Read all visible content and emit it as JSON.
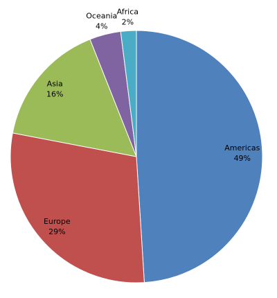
{
  "chart_data": {
    "type": "pie",
    "categories": [
      "Americas",
      "Europe",
      "Asia",
      "Oceania",
      "Africa"
    ],
    "values": [
      49,
      29,
      16,
      4,
      2
    ],
    "value_labels": [
      "49%",
      "29%",
      "16%",
      "4%",
      "2%"
    ],
    "colors": [
      "#4f81bd",
      "#c0504d",
      "#9bbb59",
      "#8064a2",
      "#4bacc6"
    ]
  }
}
